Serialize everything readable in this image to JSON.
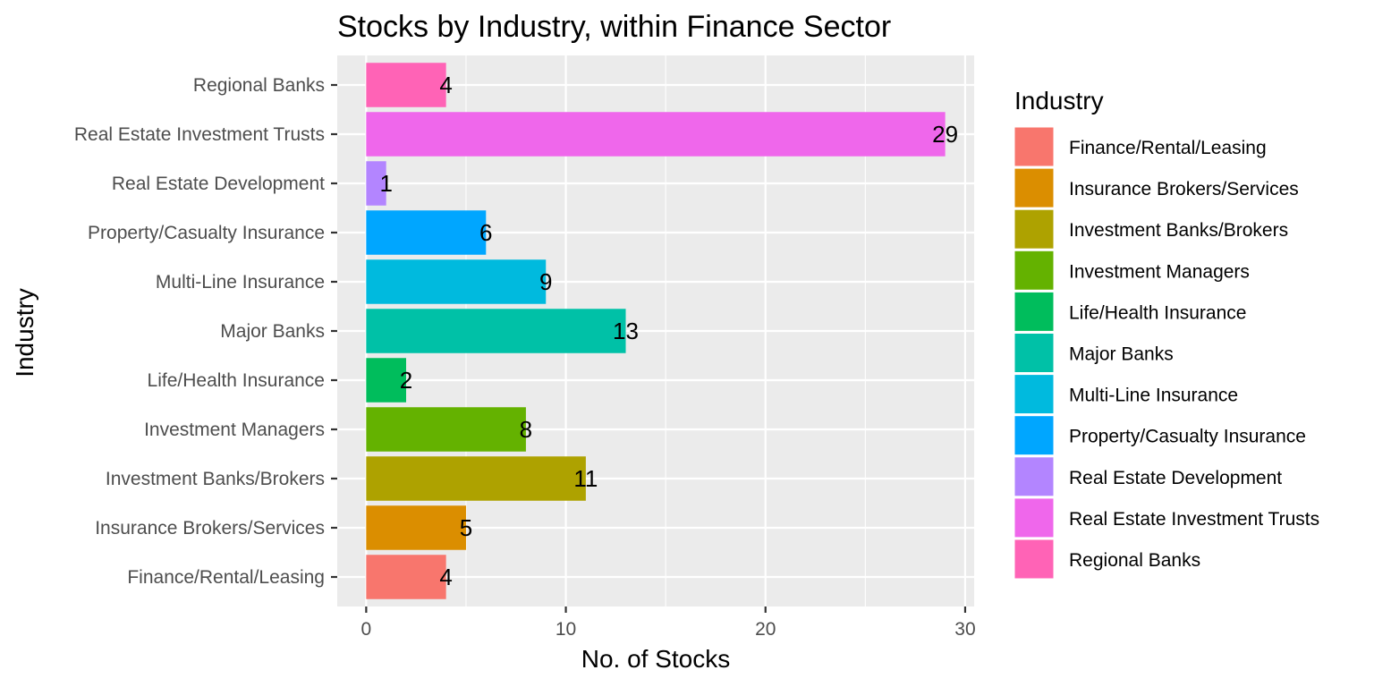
{
  "chart_data": {
    "type": "bar",
    "orientation": "horizontal",
    "title": "Stocks by Industry, within Finance Sector",
    "xlabel": "No. of Stocks",
    "ylabel": "Industry",
    "xlim": [
      -1.45,
      30.45
    ],
    "x_ticks": [
      0,
      10,
      20,
      30
    ],
    "x_tick_labels": [
      "0",
      "10",
      "20",
      "30"
    ],
    "grid": true,
    "legend_title": "Industry",
    "legend_position": "right",
    "categories": [
      "Finance/Rental/Leasing",
      "Insurance Brokers/Services",
      "Investment Banks/Brokers",
      "Investment Managers",
      "Life/Health Insurance",
      "Major Banks",
      "Multi-Line Insurance",
      "Property/Casualty Insurance",
      "Real Estate Development",
      "Real Estate Investment Trusts",
      "Regional Banks"
    ],
    "values": [
      4,
      5,
      11,
      8,
      2,
      13,
      9,
      6,
      1,
      29,
      4
    ],
    "data_labels": [
      "4",
      "5",
      "11",
      "8",
      "2",
      "13",
      "9",
      "6",
      "1",
      "29",
      "4"
    ],
    "colors": [
      "#F8766D",
      "#DB8E00",
      "#AEA200",
      "#64B200",
      "#00BD5C",
      "#00C1A7",
      "#00BADE",
      "#00A6FF",
      "#B385FF",
      "#EF67EB",
      "#FF63B6"
    ]
  },
  "style": {
    "panel_bg": "#EBEBEB",
    "grid_major": "#FFFFFF",
    "tick_text": "#4D4D4D",
    "tick_mark": "#333333"
  }
}
